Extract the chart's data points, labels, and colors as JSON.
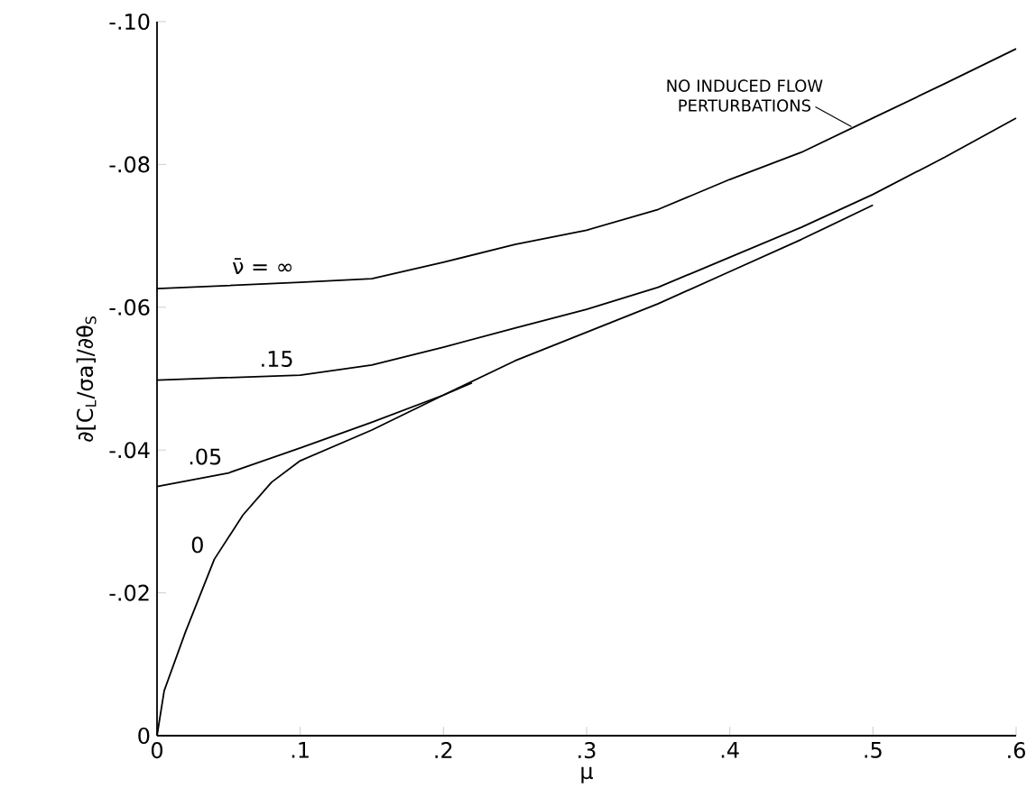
{
  "chart_data": {
    "type": "line",
    "xlabel": "μ",
    "ylabel": "∂[C$_{L}$/σa]/∂θ$_{S}$",
    "xlim": [
      0,
      0.6
    ],
    "ylim": [
      0,
      -0.1
    ],
    "xticks": [
      0,
      {
        "value": 0.1,
        "label": ".1"
      },
      {
        "value": 0.2,
        "label": ".2"
      },
      {
        "value": 0.3,
        "label": ".3"
      },
      {
        "value": 0.4,
        "label": ".4"
      },
      {
        "value": 0.5,
        "label": ".5"
      },
      {
        "value": 0.6,
        "label": ".6"
      }
    ],
    "yticks": [
      0,
      {
        "value": -0.02,
        "label": "-.02"
      },
      {
        "value": -0.04,
        "label": "-.04"
      },
      {
        "value": -0.06,
        "label": "-.06"
      },
      {
        "value": -0.08,
        "label": "-.08"
      },
      {
        "value": -0.1,
        "label": "-.10"
      }
    ],
    "grid": false,
    "legend": false,
    "marker": "none",
    "line_style": "solid",
    "series": [
      {
        "name": "ν̄ = ∞",
        "color": "#000000",
        "x": [
          0,
          0.1,
          0.15,
          0.2,
          0.25,
          0.3,
          0.35,
          0.4,
          0.45,
          0.5,
          0.55,
          0.6
        ],
        "values": [
          -0.0626,
          -0.0635,
          -0.064,
          -0.0663,
          -0.0688,
          -0.0708,
          -0.0737,
          -0.0779,
          -0.0817,
          -0.0865,
          -0.0913,
          -0.0962
        ]
      },
      {
        "name": ".15",
        "color": "#000000",
        "x": [
          0,
          0.1,
          0.15,
          0.2,
          0.25,
          0.3,
          0.35,
          0.4,
          0.45,
          0.5,
          0.55,
          0.6
        ],
        "values": [
          -0.0498,
          -0.0505,
          -0.0519,
          -0.0544,
          -0.0571,
          -0.0597,
          -0.0628,
          -0.067,
          -0.0712,
          -0.0758,
          -0.081,
          -0.0865
        ]
      },
      {
        "name": ".05",
        "color": "#000000",
        "x": [
          0,
          0.05,
          0.1,
          0.15,
          0.2,
          0.22
        ],
        "values": [
          -0.0349,
          -0.0368,
          -0.0403,
          -0.0439,
          -0.0477,
          -0.0494
        ]
      },
      {
        "name": "0",
        "color": "#000000",
        "x": [
          0,
          0.005,
          0.02,
          0.04,
          0.06,
          0.08,
          0.1,
          0.15,
          0.2,
          0.25,
          0.3,
          0.35,
          0.4,
          0.45,
          0.5
        ],
        "values": [
          0,
          -0.0063,
          -0.0146,
          -0.0247,
          -0.0309,
          -0.0355,
          -0.0385,
          -0.0428,
          -0.0477,
          -0.0525,
          -0.0565,
          -0.0605,
          -0.065,
          -0.0695,
          -0.0743
        ]
      }
    ],
    "annotations": [
      {
        "text": "NO INDUCED FLOW PERTURBATIONS",
        "x": 0.485,
        "y": -0.0853
      }
    ]
  }
}
